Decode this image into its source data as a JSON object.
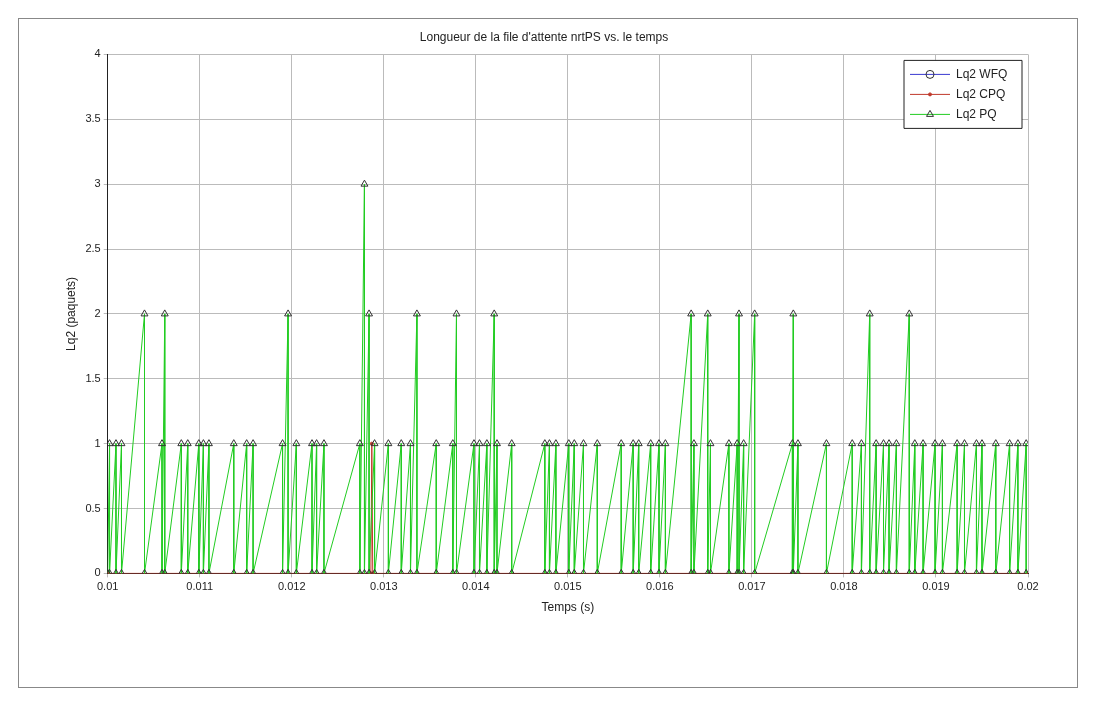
{
  "chart_data": {
    "type": "line",
    "title": "Longueur de la file d'attente nrtPS vs. le temps",
    "xlabel": "Temps (s)",
    "ylabel": "Lq2 (paquets)",
    "xlim": [
      0.01,
      0.02
    ],
    "xticks": [
      0.01,
      0.011,
      0.012,
      0.013,
      0.014,
      0.015,
      0.016,
      0.017,
      0.018,
      0.019,
      0.02
    ],
    "ylim": [
      0,
      4
    ],
    "yticks": [
      0,
      0.5,
      1,
      1.5,
      2,
      2.5,
      3,
      3.5,
      4
    ],
    "grid": true,
    "legend": "top right",
    "line_style": "solid",
    "series": [
      {
        "name": "Lq2 WFQ",
        "color": "#3a3ad0",
        "marker": "circle"
      },
      {
        "name": "Lq2 CPQ",
        "color": "#c0392b",
        "marker": "circle",
        "x": [
          0.01,
          0.01286,
          0.01287,
          0.01288,
          0.02
        ],
        "values": [
          0,
          0,
          1,
          0,
          0
        ]
      },
      {
        "name": "Lq2 PQ",
        "color": "#22cc22",
        "marker": "triangle",
        "x": [
          0.01,
          0.01002,
          0.01002,
          0.01009,
          0.01009,
          0.01015,
          0.01015,
          0.0104,
          0.0104,
          0.01059,
          0.01059,
          0.01062,
          0.01062,
          0.0108,
          0.0108,
          0.01087,
          0.01087,
          0.01099,
          0.01099,
          0.01104,
          0.01104,
          0.0111,
          0.0111,
          0.01137,
          0.01137,
          0.01151,
          0.01151,
          0.01158,
          0.01158,
          0.0119,
          0.0119,
          0.01196,
          0.01196,
          0.01205,
          0.01205,
          0.01222,
          0.01222,
          0.01227,
          0.01227,
          0.01235,
          0.01235,
          0.01274,
          0.01274,
          0.01279,
          0.01279,
          0.01284,
          0.01284,
          0.0129,
          0.0129,
          0.01305,
          0.01305,
          0.01319,
          0.01319,
          0.01329,
          0.01329,
          0.01336,
          0.01336,
          0.01357,
          0.01357,
          0.01375,
          0.01375,
          0.01379,
          0.01379,
          0.01398,
          0.01398,
          0.01404,
          0.01404,
          0.01412,
          0.01412,
          0.0142,
          0.0142,
          0.01423,
          0.01423,
          0.01439,
          0.01439,
          0.01475,
          0.01475,
          0.0148,
          0.0148,
          0.01487,
          0.01487,
          0.01501,
          0.01501,
          0.01507,
          0.01507,
          0.01517,
          0.01517,
          0.01532,
          0.01532,
          0.01558,
          0.01558,
          0.01571,
          0.01571,
          0.01577,
          0.01577,
          0.0159,
          0.0159,
          0.01599,
          0.01599,
          0.01606,
          0.01606,
          0.01634,
          0.01634,
          0.01637,
          0.01637,
          0.01652,
          0.01652,
          0.01655,
          0.01655,
          0.01675,
          0.01675,
          0.01684,
          0.01684,
          0.01686,
          0.01686,
          0.01691,
          0.01691,
          0.01703,
          0.01703,
          0.01744,
          0.01744,
          0.01745,
          0.01745,
          0.0175,
          0.0175,
          0.01781,
          0.01781,
          0.01809,
          0.01809,
          0.01819,
          0.01819,
          0.01828,
          0.01828,
          0.01835,
          0.01835,
          0.01843,
          0.01843,
          0.01849,
          0.01849,
          0.01857,
          0.01857,
          0.01871,
          0.01871,
          0.01877,
          0.01877,
          0.01886,
          0.01886,
          0.01899,
          0.01899,
          0.01907,
          0.01907,
          0.01923,
          0.01923,
          0.01931,
          0.01931,
          0.01944,
          0.01944,
          0.0195,
          0.0195,
          0.01965,
          0.01965,
          0.0198,
          0.0198,
          0.01989,
          0.01989,
          0.01998,
          0.01998
        ],
        "values": [
          0,
          1,
          0,
          1,
          0,
          1,
          0,
          2,
          0,
          1,
          0,
          2,
          0,
          1,
          0,
          1,
          0,
          1,
          0,
          1,
          0,
          1,
          0,
          1,
          0,
          1,
          0,
          1,
          0,
          1,
          0,
          2,
          0,
          1,
          0,
          1,
          0,
          1,
          0,
          1,
          0,
          1,
          0,
          3,
          0,
          2,
          0,
          1,
          0,
          1,
          0,
          1,
          0,
          1,
          0,
          2,
          0,
          1,
          0,
          1,
          0,
          2,
          0,
          1,
          0,
          1,
          0,
          1,
          0,
          2,
          0,
          1,
          0,
          1,
          0,
          1,
          0,
          1,
          0,
          1,
          0,
          1,
          0,
          1,
          0,
          1,
          0,
          1,
          0,
          1,
          0,
          1,
          0,
          1,
          0,
          1,
          0,
          1,
          0,
          1,
          0,
          2,
          0,
          1,
          0,
          2,
          0,
          1,
          0,
          1,
          0,
          1,
          0,
          2,
          0,
          1,
          0,
          2,
          0,
          1,
          0,
          2,
          0,
          1,
          0,
          1,
          0,
          1,
          0,
          1,
          0,
          2,
          0,
          1,
          0,
          1,
          0,
          1,
          0,
          1,
          0,
          2,
          0,
          1,
          0,
          1,
          0,
          1,
          0,
          1,
          0,
          1,
          0,
          1,
          0,
          1,
          0,
          1,
          0,
          1,
          0,
          1,
          0,
          1,
          0,
          1,
          0
        ]
      }
    ]
  }
}
